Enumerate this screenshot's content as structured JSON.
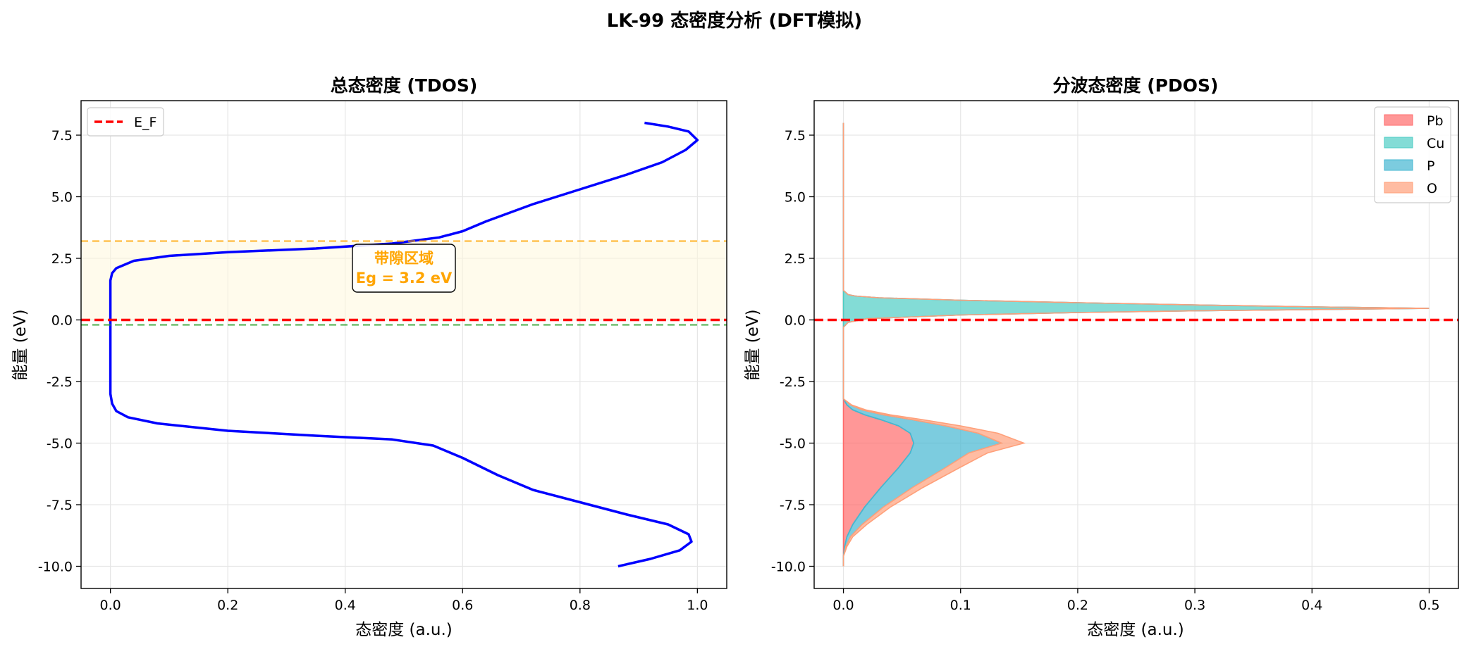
{
  "figure": {
    "suptitle": "LK-99 态密度分析 (DFT模拟)"
  },
  "chart_data": [
    {
      "type": "line",
      "title": "总态密度 (TDOS)",
      "xlabel": "态密度 (a.u.)",
      "ylabel": "能量 (eV)",
      "xlim": [
        -0.05,
        1.05
      ],
      "ylim": [
        -10.9,
        8.9
      ],
      "xticks": [
        "0.0",
        "0.2",
        "0.4",
        "0.6",
        "0.8",
        "1.0"
      ],
      "yticks": [
        "-10.0",
        "-7.5",
        "-5.0",
        "-2.5",
        "0.0",
        "2.5",
        "5.0",
        "7.5"
      ],
      "grid": true,
      "legend_position": "top-left",
      "series": [
        {
          "name": "",
          "color": "#0000FF",
          "points": [
            [
              0.865,
              -10.0
            ],
            [
              0.92,
              -9.7
            ],
            [
              0.97,
              -9.35
            ],
            [
              0.99,
              -9.0
            ],
            [
              0.985,
              -8.7
            ],
            [
              0.95,
              -8.3
            ],
            [
              0.88,
              -7.9
            ],
            [
              0.8,
              -7.4
            ],
            [
              0.72,
              -6.9
            ],
            [
              0.66,
              -6.3
            ],
            [
              0.6,
              -5.6
            ],
            [
              0.55,
              -5.1
            ],
            [
              0.48,
              -4.85
            ],
            [
              0.35,
              -4.7
            ],
            [
              0.2,
              -4.5
            ],
            [
              0.08,
              -4.2
            ],
            [
              0.03,
              -3.95
            ],
            [
              0.01,
              -3.7
            ],
            [
              0.003,
              -3.4
            ],
            [
              0.0,
              -3.0
            ],
            [
              0.0,
              -2.0
            ],
            [
              0.0,
              -1.0
            ],
            [
              0.0,
              0.0
            ],
            [
              0.0,
              1.0
            ],
            [
              0.0,
              1.6
            ],
            [
              0.003,
              1.9
            ],
            [
              0.01,
              2.1
            ],
            [
              0.04,
              2.4
            ],
            [
              0.1,
              2.6
            ],
            [
              0.2,
              2.75
            ],
            [
              0.35,
              2.9
            ],
            [
              0.48,
              3.1
            ],
            [
              0.56,
              3.35
            ],
            [
              0.6,
              3.6
            ],
            [
              0.64,
              4.0
            ],
            [
              0.72,
              4.7
            ],
            [
              0.8,
              5.3
            ],
            [
              0.88,
              5.9
            ],
            [
              0.94,
              6.4
            ],
            [
              0.98,
              6.9
            ],
            [
              1.0,
              7.3
            ],
            [
              0.985,
              7.65
            ],
            [
              0.95,
              7.85
            ],
            [
              0.91,
              8.0
            ]
          ]
        }
      ],
      "reference_lines": [
        {
          "name": "E_F",
          "y": 0.0,
          "color": "#FF0000",
          "style": "dashed"
        },
        {
          "name": "",
          "y": 3.2,
          "color": "#FFA500",
          "style": "dashed"
        },
        {
          "name": "",
          "y": -0.2,
          "color": "#2CA02C",
          "style": "dashed"
        }
      ],
      "shaded_band": {
        "y0": 0.0,
        "y1": 3.2,
        "color": "#FFF8DC"
      },
      "annotation": {
        "line1": "带隙区域",
        "line2": "Eg = 3.2 eV",
        "x": 0.5,
        "y": 2.0,
        "color": "#FFA500"
      },
      "legend": [
        {
          "label": "E_F",
          "color": "#FF0000",
          "style": "dashed"
        }
      ]
    },
    {
      "type": "area",
      "title": "分波态密度 (PDOS)",
      "xlabel": "态密度 (a.u.)",
      "ylabel": "能量 (eV)",
      "xlim": [
        -0.025,
        0.525
      ],
      "ylim": [
        -10.9,
        8.9
      ],
      "xticks": [
        "0.0",
        "0.1",
        "0.2",
        "0.3",
        "0.4",
        "0.5"
      ],
      "yticks": [
        "-10.0",
        "-7.5",
        "-5.0",
        "-2.5",
        "0.0",
        "2.5",
        "5.0",
        "7.5"
      ],
      "grid": true,
      "legend_position": "top-right",
      "stacked": true,
      "fermi_level": {
        "y": 0.0,
        "color": "#FF0000",
        "style": "dashed"
      },
      "series": [
        {
          "name": "Pb",
          "color": "#FF6B6B",
          "points": [
            [
              0.0,
              -10.0
            ],
            [
              0.0,
              -9.6
            ],
            [
              0.001,
              -9.2
            ],
            [
              0.003,
              -8.8
            ],
            [
              0.008,
              -8.3
            ],
            [
              0.018,
              -7.6
            ],
            [
              0.032,
              -6.8
            ],
            [
              0.047,
              -6.0
            ],
            [
              0.057,
              -5.4
            ],
            [
              0.06,
              -5.0
            ],
            [
              0.057,
              -4.6
            ],
            [
              0.047,
              -4.3
            ],
            [
              0.032,
              -4.05
            ],
            [
              0.018,
              -3.85
            ],
            [
              0.008,
              -3.65
            ],
            [
              0.003,
              -3.45
            ],
            [
              0.0,
              -3.2
            ],
            [
              0.0,
              -2.5
            ],
            [
              0.0,
              8.0
            ]
          ]
        },
        {
          "name": "Cu",
          "color": "#4ECDC4",
          "points": [
            [
              0.0,
              -10.0
            ],
            [
              0.0,
              -3.0
            ],
            [
              0.0,
              -2.0
            ],
            [
              0.0,
              -1.0
            ],
            [
              0.0,
              -0.3
            ],
            [
              0.004,
              -0.1
            ],
            [
              0.02,
              0.05
            ],
            [
              0.1,
              0.2
            ],
            [
              0.2,
              0.3
            ],
            [
              0.3,
              0.37
            ],
            [
              0.4,
              0.42
            ],
            [
              0.5,
              0.47
            ],
            [
              0.4,
              0.53
            ],
            [
              0.3,
              0.61
            ],
            [
              0.2,
              0.7
            ],
            [
              0.1,
              0.8
            ],
            [
              0.03,
              0.9
            ],
            [
              0.01,
              0.97
            ],
            [
              0.004,
              1.03
            ],
            [
              0.0,
              1.2
            ],
            [
              0.0,
              8.0
            ]
          ]
        },
        {
          "name": "P",
          "color": "#45B7D1",
          "points": [
            [
              0.0,
              -10.0
            ],
            [
              0.0,
              -9.6
            ],
            [
              0.001,
              -9.2
            ],
            [
              0.003,
              -8.8
            ],
            [
              0.008,
              -8.3
            ],
            [
              0.016,
              -7.6
            ],
            [
              0.027,
              -6.8
            ],
            [
              0.04,
              -6.0
            ],
            [
              0.05,
              -5.4
            ],
            [
              0.075,
              -5.0
            ],
            [
              0.058,
              -4.6
            ],
            [
              0.04,
              -4.3
            ],
            [
              0.027,
              -4.05
            ],
            [
              0.016,
              -3.85
            ],
            [
              0.008,
              -3.65
            ],
            [
              0.003,
              -3.45
            ],
            [
              0.0,
              -3.2
            ],
            [
              0.0,
              -2.5
            ],
            [
              0.0,
              8.0
            ]
          ]
        },
        {
          "name": "O",
          "color": "#FFA07A",
          "points": [
            [
              0.0,
              -10.0
            ],
            [
              0.0,
              -9.6
            ],
            [
              0.001,
              -9.2
            ],
            [
              0.002,
              -8.8
            ],
            [
              0.004,
              -8.3
            ],
            [
              0.006,
              -7.6
            ],
            [
              0.009,
              -6.8
            ],
            [
              0.012,
              -6.0
            ],
            [
              0.016,
              -5.4
            ],
            [
              0.019,
              -5.0
            ],
            [
              0.017,
              -4.6
            ],
            [
              0.013,
              -4.3
            ],
            [
              0.009,
              -4.05
            ],
            [
              0.006,
              -3.85
            ],
            [
              0.003,
              -3.65
            ],
            [
              0.001,
              -3.45
            ],
            [
              0.0,
              -3.2
            ],
            [
              0.0,
              -2.5
            ],
            [
              0.0,
              8.0
            ]
          ]
        }
      ],
      "legend": [
        {
          "label": "Pb",
          "color": "#FF6B6B"
        },
        {
          "label": "Cu",
          "color": "#4ECDC4"
        },
        {
          "label": "P",
          "color": "#45B7D1"
        },
        {
          "label": "O",
          "color": "#FFA07A"
        }
      ]
    }
  ]
}
